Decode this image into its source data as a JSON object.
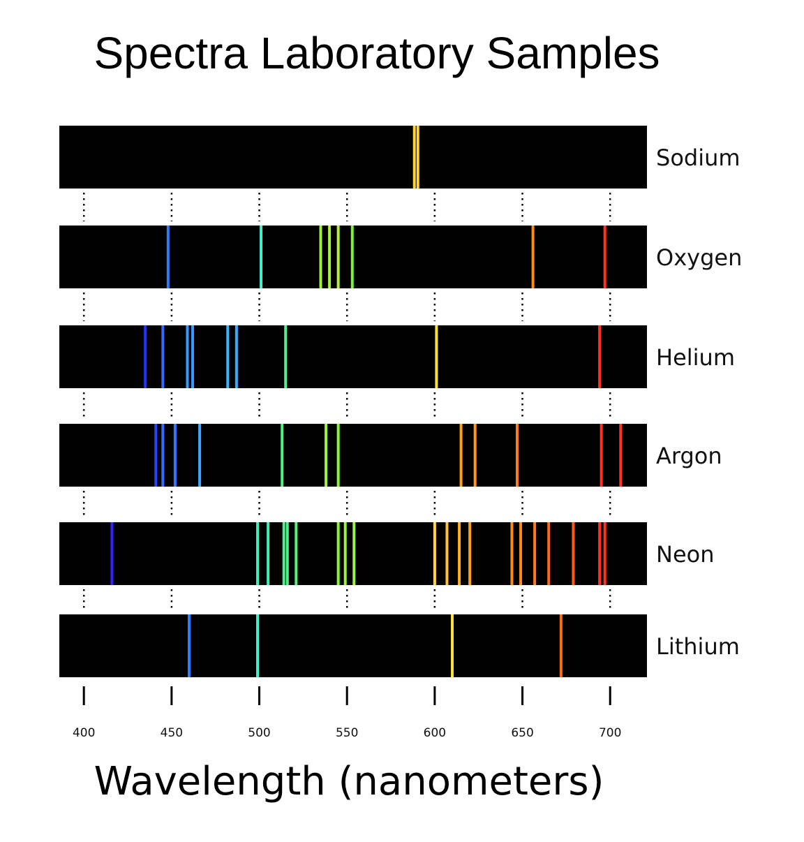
{
  "chart_data": {
    "type": "emission-spectra",
    "title": "Spectra Laboratory Samples",
    "xlabel": "Wavelength (nanometers)",
    "ylabel": "",
    "xlim": [
      386,
      721
    ],
    "xticks": [
      400,
      450,
      500,
      550,
      600,
      650,
      700
    ],
    "tick_labels": [
      "400",
      "450",
      "500",
      "550",
      "600",
      "650",
      "700"
    ],
    "grid": "dotted vertical guides at each tick between spectra",
    "background": "#000000",
    "series": [
      {
        "name": "Sodium",
        "lines": [
          {
            "wl": 588.4,
            "color": "#ffd43a"
          },
          {
            "wl": 590.4,
            "color": "#ffd43a"
          }
        ]
      },
      {
        "name": "Oxygen",
        "lines": [
          {
            "wl": 448,
            "color": "#2f7cff"
          },
          {
            "wl": 501,
            "color": "#3ff0c8"
          },
          {
            "wl": 535,
            "color": "#9cf43a"
          },
          {
            "wl": 540,
            "color": "#a9f43a"
          },
          {
            "wl": 545,
            "color": "#b6f03a"
          },
          {
            "wl": 553,
            "color": "#7cf43a"
          },
          {
            "wl": 656,
            "color": "#ff8a1a"
          },
          {
            "wl": 697,
            "color": "#ff3322"
          }
        ]
      },
      {
        "name": "Helium",
        "lines": [
          {
            "wl": 435,
            "color": "#2233ff"
          },
          {
            "wl": 445,
            "color": "#2f6cff"
          },
          {
            "wl": 459,
            "color": "#3a98ff"
          },
          {
            "wl": 462,
            "color": "#3a98ff"
          },
          {
            "wl": 482,
            "color": "#3ab8ff"
          },
          {
            "wl": 487,
            "color": "#3aaaff"
          },
          {
            "wl": 515,
            "color": "#4ff08a"
          },
          {
            "wl": 601,
            "color": "#ffe03a"
          },
          {
            "wl": 694,
            "color": "#ff3322"
          }
        ]
      },
      {
        "name": "Argon",
        "lines": [
          {
            "wl": 441,
            "color": "#2244ff"
          },
          {
            "wl": 445,
            "color": "#2f6cff"
          },
          {
            "wl": 452,
            "color": "#2f78ff"
          },
          {
            "wl": 466,
            "color": "#3aa6ff"
          },
          {
            "wl": 513,
            "color": "#4ff08a"
          },
          {
            "wl": 538,
            "color": "#9cf43a"
          },
          {
            "wl": 545,
            "color": "#8af43a"
          },
          {
            "wl": 615,
            "color": "#ffa01a"
          },
          {
            "wl": 623,
            "color": "#ff961a"
          },
          {
            "wl": 647,
            "color": "#ff7a1a"
          },
          {
            "wl": 695,
            "color": "#ff3322"
          },
          {
            "wl": 706,
            "color": "#ff3322"
          }
        ]
      },
      {
        "name": "Neon",
        "lines": [
          {
            "wl": 416,
            "color": "#3322ff"
          },
          {
            "wl": 499,
            "color": "#3af0b8"
          },
          {
            "wl": 505,
            "color": "#3af0b8"
          },
          {
            "wl": 514,
            "color": "#4ff08a"
          },
          {
            "wl": 516,
            "color": "#4ff08a"
          },
          {
            "wl": 521,
            "color": "#5af07a"
          },
          {
            "wl": 545,
            "color": "#8af43a"
          },
          {
            "wl": 549,
            "color": "#9cf43a"
          },
          {
            "wl": 554,
            "color": "#9cf43a"
          },
          {
            "wl": 600,
            "color": "#ffd43a"
          },
          {
            "wl": 607,
            "color": "#ffc03a"
          },
          {
            "wl": 614,
            "color": "#ffb01a"
          },
          {
            "wl": 620,
            "color": "#ffa01a"
          },
          {
            "wl": 644,
            "color": "#ff8a1a"
          },
          {
            "wl": 649,
            "color": "#ff8a1a"
          },
          {
            "wl": 657,
            "color": "#ff7a1a"
          },
          {
            "wl": 665,
            "color": "#ff6a1a"
          },
          {
            "wl": 679,
            "color": "#ff5a1a"
          },
          {
            "wl": 694,
            "color": "#ff3322"
          },
          {
            "wl": 697,
            "color": "#ff3322"
          }
        ]
      },
      {
        "name": "Lithium",
        "lines": [
          {
            "wl": 460,
            "color": "#2f7cff"
          },
          {
            "wl": 499,
            "color": "#3ff0c8"
          },
          {
            "wl": 610,
            "color": "#ffe03a"
          },
          {
            "wl": 672,
            "color": "#ff6a1a"
          }
        ]
      }
    ]
  }
}
